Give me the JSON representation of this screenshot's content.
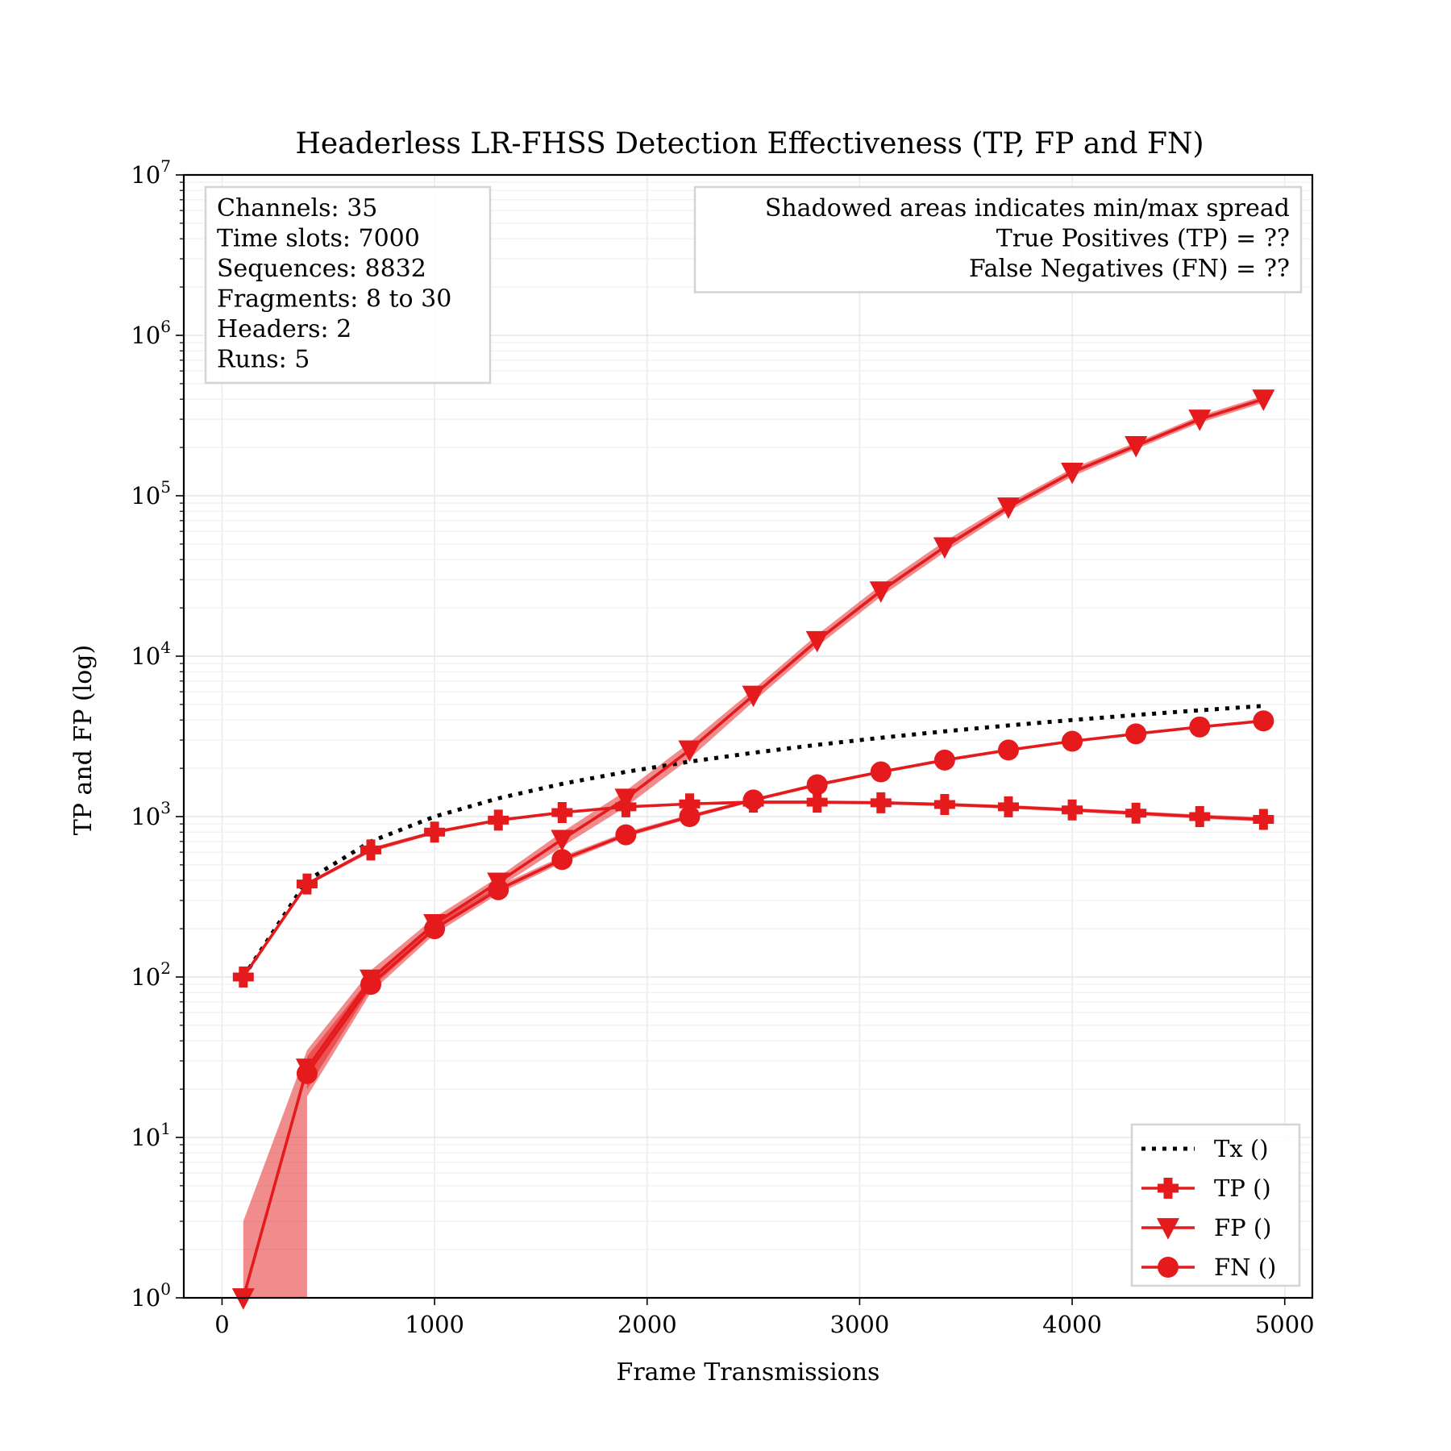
{
  "chart_data": {
    "type": "line",
    "title": "Headerless LR-FHSS Detection Effectiveness (TP, FP and FN)",
    "xlabel": "Frame Transmissions",
    "ylabel": "TP and FP (log)",
    "xlim": [
      -180,
      5130
    ],
    "ylim": [
      1,
      10000000
    ],
    "yscale": "log",
    "xticks": [
      0,
      1000,
      2000,
      3000,
      4000,
      5000
    ],
    "xtick_labels": [
      "0",
      "1000",
      "2000",
      "3000",
      "4000",
      "5000"
    ],
    "ytick_exponents": [
      0,
      1,
      2,
      3,
      4,
      5,
      6,
      7
    ],
    "ytick_base": "10",
    "grid": true,
    "legend_position": "lower-right",
    "info_box": {
      "position": "upper-left",
      "lines": [
        "Channels: 35",
        "Time slots: 7000",
        "Sequences: 8832",
        "Fragments: 8 to 30",
        "Headers: 2",
        "Runs: 5"
      ]
    },
    "note_box": {
      "position": "upper-right",
      "lines": [
        "Shadowed areas indicates min/max spread",
        "True Positives (TP) = ??",
        "False Negatives (FN) = ??"
      ]
    },
    "x": [
      100,
      400,
      700,
      1000,
      1300,
      1600,
      1900,
      2200,
      2500,
      2800,
      3100,
      3400,
      3700,
      4000,
      4300,
      4600,
      4900
    ],
    "series": [
      {
        "name": "Tx ()",
        "color": "#000000",
        "style": "dotted",
        "marker": "none",
        "values": [
          100,
          400,
          700,
          1000,
          1300,
          1600,
          1900,
          2200,
          2500,
          2800,
          3100,
          3400,
          3700,
          4000,
          4300,
          4600,
          4900
        ]
      },
      {
        "name": "TP ()",
        "color": "#e41a1c",
        "style": "solid",
        "marker": "plus",
        "values": [
          100,
          380,
          620,
          800,
          950,
          1060,
          1150,
          1200,
          1230,
          1230,
          1220,
          1190,
          1150,
          1100,
          1050,
          1000,
          960
        ],
        "min": [
          98,
          370,
          600,
          780,
          930,
          1040,
          1130,
          1180,
          1200,
          1200,
          1190,
          1160,
          1120,
          1070,
          1020,
          970,
          930
        ],
        "max": [
          100,
          390,
          640,
          820,
          970,
          1080,
          1170,
          1220,
          1260,
          1260,
          1250,
          1220,
          1180,
          1130,
          1080,
          1030,
          990
        ]
      },
      {
        "name": "FP ()",
        "color": "#e41a1c",
        "style": "solid",
        "marker": "triangle-down",
        "values": [
          1,
          27,
          97,
          215,
          390,
          720,
          1300,
          2600,
          5700,
          12500,
          25500,
          48000,
          85000,
          140000,
          205000,
          300000,
          400000
        ],
        "min": [
          1,
          20,
          85,
          195,
          360,
          650,
          1150,
          2300,
          5200,
          11500,
          23500,
          44500,
          80000,
          132000,
          195000,
          285000,
          380000
        ],
        "max": [
          3,
          35,
          110,
          235,
          420,
          800,
          1450,
          2900,
          6200,
          13600,
          27800,
          52000,
          90000,
          148000,
          215000,
          315000,
          420000
        ]
      },
      {
        "name": "FN ()",
        "color": "#e41a1c",
        "style": "solid",
        "marker": "circle",
        "values": [
          null,
          25,
          90,
          200,
          350,
          540,
          770,
          1000,
          1270,
          1580,
          1900,
          2250,
          2600,
          2950,
          3280,
          3620,
          3950
        ],
        "min": [
          null,
          18,
          80,
          185,
          330,
          515,
          745,
          970,
          1240,
          1540,
          1860,
          2200,
          2550,
          2900,
          3230,
          3570,
          3900
        ],
        "max": [
          null,
          32,
          100,
          215,
          370,
          565,
          800,
          1030,
          1300,
          1620,
          1940,
          2300,
          2650,
          3000,
          3330,
          3670,
          4000
        ]
      }
    ]
  }
}
